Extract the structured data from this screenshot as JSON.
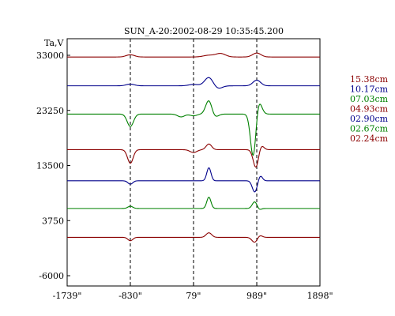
{
  "chart_data": {
    "type": "line",
    "title": "SUN_A-20:2002-08-29 10:35:45.200",
    "ylabel": "Ta,V",
    "xlabel": "",
    "xlim": [
      -1739,
      1898
    ],
    "ylim": [
      -6000,
      36000
    ],
    "x_ticks": [
      -1739,
      -830,
      79,
      989,
      1898
    ],
    "x_tick_labels": [
      "-1739\"",
      "-830\"",
      "79\"",
      "989\"",
      "1898\""
    ],
    "y_ticks": [
      33000,
      23250,
      13500,
      3750,
      -6000
    ],
    "y_tick_labels": [
      "33000",
      "23250",
      "13500",
      "3750",
      "-6000"
    ],
    "vertical_markers": [
      -830,
      79,
      989
    ],
    "grid": false,
    "legend_position": "right",
    "series": [
      {
        "name": "15.38cm",
        "color": "#8b0000",
        "baseline": 32700,
        "features": [
          [
            -830,
            400,
            60
          ],
          [
            300,
            300,
            80
          ],
          [
            470,
            600,
            70
          ],
          [
            989,
            700,
            60
          ]
        ]
      },
      {
        "name": "10.17cm",
        "color": "#00008b",
        "baseline": 27600,
        "features": [
          [
            -830,
            300,
            60
          ],
          [
            79,
            250,
            70
          ],
          [
            300,
            1500,
            60
          ],
          [
            430,
            -500,
            60
          ],
          [
            989,
            1000,
            55
          ]
        ]
      },
      {
        "name": "07.03cm",
        "color": "#008000",
        "baseline": 22600,
        "features": [
          [
            -830,
            -2200,
            45
          ],
          [
            -100,
            -500,
            50
          ],
          [
            79,
            -300,
            50
          ],
          [
            300,
            2500,
            45
          ],
          [
            380,
            -600,
            50
          ],
          [
            940,
            -8000,
            40
          ],
          [
            1010,
            2600,
            45
          ]
        ]
      },
      {
        "name": "04.93cm",
        "color": "#8b0000",
        "baseline": 16300,
        "features": [
          [
            -830,
            -2400,
            40
          ],
          [
            79,
            -500,
            50
          ],
          [
            300,
            1000,
            40
          ],
          [
            980,
            -3400,
            40
          ],
          [
            1040,
            1100,
            40
          ]
        ]
      },
      {
        "name": "02.90cm",
        "color": "#00008b",
        "baseline": 10800,
        "features": [
          [
            -830,
            -600,
            35
          ],
          [
            300,
            2300,
            30
          ],
          [
            960,
            -2000,
            35
          ],
          [
            1040,
            900,
            30
          ]
        ]
      },
      {
        "name": "02.67cm",
        "color": "#008000",
        "baseline": 5900,
        "features": [
          [
            -830,
            400,
            35
          ],
          [
            300,
            2000,
            30
          ],
          [
            960,
            1200,
            35
          ],
          [
            1020,
            -300,
            30
          ]
        ]
      },
      {
        "name": "02.24cm",
        "color": "#8b0000",
        "baseline": 790,
        "features": [
          [
            -830,
            -600,
            35
          ],
          [
            300,
            800,
            40
          ],
          [
            960,
            -900,
            40
          ],
          [
            1030,
            400,
            35
          ]
        ]
      }
    ]
  }
}
